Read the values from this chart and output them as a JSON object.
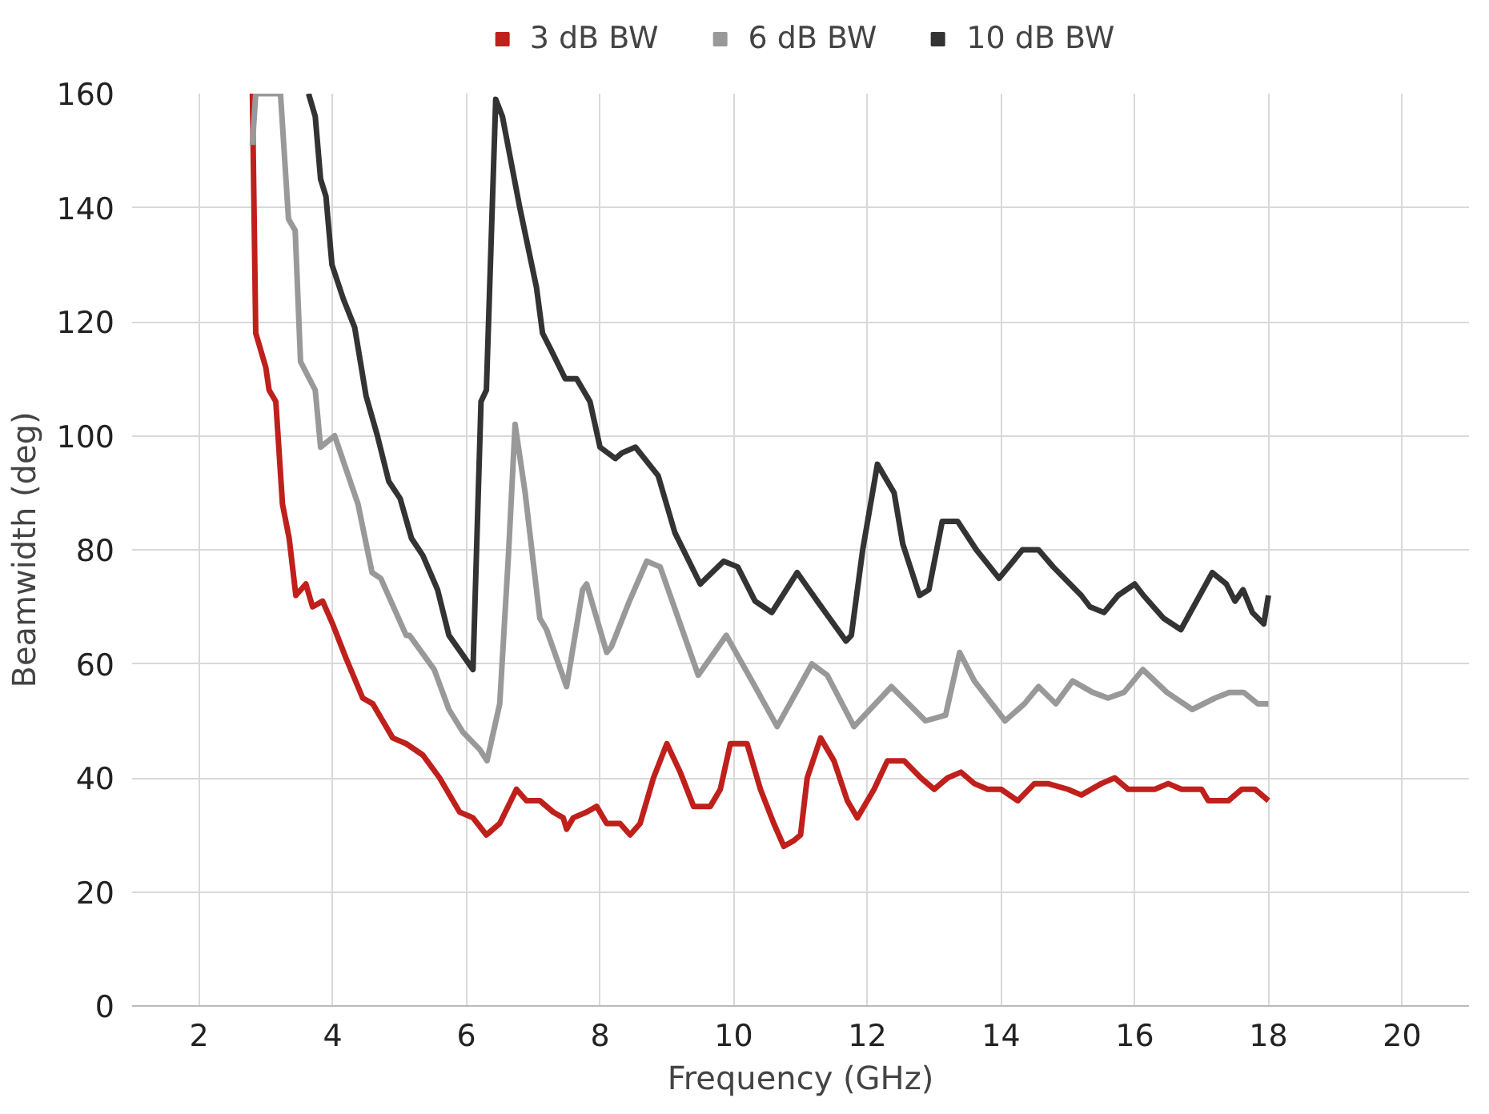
{
  "chart_data": {
    "type": "line",
    "xlabel": "Frequency (GHz)",
    "ylabel": "Beamwidth (deg)",
    "xlim": [
      1,
      21
    ],
    "ylim": [
      0,
      160
    ],
    "xticks": [
      2,
      4,
      6,
      8,
      10,
      12,
      14,
      16,
      18,
      20
    ],
    "yticks": [
      0,
      20,
      40,
      60,
      80,
      100,
      120,
      140,
      160
    ],
    "grid": true,
    "legend": "top",
    "marker": "none",
    "line_style": "solid",
    "series": [
      {
        "name": "3 dB BW",
        "color": "#c0201c",
        "x": [
          2.8,
          2.85,
          3.0,
          3.05,
          3.15,
          3.25,
          3.35,
          3.45,
          3.6,
          3.7,
          3.85,
          4.0,
          4.2,
          4.45,
          4.6,
          4.75,
          4.9,
          5.1,
          5.35,
          5.6,
          5.9,
          6.1,
          6.3,
          6.5,
          6.75,
          6.9,
          7.1,
          7.3,
          7.45,
          7.5,
          7.6,
          7.8,
          7.95,
          8.1,
          8.3,
          8.45,
          8.6,
          8.8,
          9.0,
          9.2,
          9.4,
          9.65,
          9.8,
          9.95,
          10.2,
          10.4,
          10.6,
          10.75,
          10.9,
          11.0,
          11.1,
          11.3,
          11.5,
          11.7,
          11.85,
          12.1,
          12.3,
          12.55,
          12.8,
          13.0,
          13.2,
          13.4,
          13.6,
          13.8,
          14.0,
          14.25,
          14.5,
          14.7,
          15.0,
          15.2,
          15.5,
          15.7,
          15.9,
          16.1,
          16.3,
          16.5,
          16.7,
          17.0,
          17.1,
          17.4,
          17.6,
          17.8,
          18.0
        ],
        "values": [
          160,
          118,
          112,
          108,
          106,
          88,
          82,
          72,
          74,
          70,
          71,
          67,
          61,
          54,
          53,
          50,
          47,
          46,
          44,
          40,
          34,
          33,
          30,
          32,
          38,
          36,
          36,
          34,
          33,
          31,
          33,
          34,
          35,
          32,
          32,
          30,
          32,
          40,
          46,
          41,
          35,
          35,
          38,
          46,
          46,
          38,
          32,
          28,
          29,
          30,
          40,
          47,
          43,
          36,
          33,
          38,
          43,
          43,
          40,
          38,
          40,
          41,
          39,
          38,
          38,
          36,
          39,
          39,
          38,
          37,
          39,
          40,
          38,
          38,
          38,
          39,
          38,
          38,
          36,
          36,
          38,
          38,
          36
        ]
      },
      {
        "name": "6 dB BW",
        "color": "#999999",
        "x": [
          2.8,
          2.85,
          3.15,
          3.22,
          3.34,
          3.44,
          3.52,
          3.74,
          3.82,
          4.03,
          4.38,
          4.59,
          4.72,
          5.1,
          5.15,
          5.52,
          5.74,
          5.95,
          6.2,
          6.31,
          6.5,
          6.63,
          6.73,
          6.88,
          7.1,
          7.2,
          7.5,
          7.74,
          7.8,
          8.1,
          8.17,
          8.44,
          8.7,
          8.9,
          9.17,
          9.47,
          9.89,
          10.32,
          10.65,
          11.17,
          11.4,
          11.8,
          12.36,
          12.7,
          12.87,
          13.17,
          13.38,
          13.6,
          14.06,
          14.35,
          14.56,
          14.82,
          15.07,
          15.37,
          15.6,
          15.84,
          16.12,
          16.48,
          16.86,
          17.2,
          17.42,
          17.63,
          17.84,
          18.0
        ],
        "values": [
          151,
          160,
          160,
          160,
          138,
          136,
          113,
          108,
          98,
          100,
          88,
          76,
          75,
          65,
          65,
          59,
          52,
          48,
          45,
          43,
          53,
          79,
          102,
          90,
          68,
          66,
          56,
          73,
          74,
          62,
          63,
          71,
          78,
          77,
          68,
          58,
          65,
          56,
          49,
          60,
          58,
          49,
          56,
          52,
          50,
          51,
          62,
          57,
          50,
          53,
          56,
          53,
          57,
          55,
          54,
          55,
          59,
          55,
          52,
          54,
          55,
          55,
          53,
          53
        ]
      },
      {
        "name": "10 dB BW",
        "color": "#333333",
        "x": [
          3.64,
          3.74,
          3.82,
          3.9,
          3.99,
          4.16,
          4.33,
          4.5,
          4.67,
          4.84,
          5.01,
          5.18,
          5.35,
          5.57,
          5.74,
          6.1,
          6.22,
          6.3,
          6.44,
          6.54,
          6.8,
          7.05,
          7.14,
          7.27,
          7.48,
          7.65,
          7.85,
          8.0,
          8.23,
          8.33,
          8.53,
          8.87,
          9.12,
          9.5,
          9.85,
          10.06,
          10.32,
          10.57,
          10.95,
          11.25,
          11.68,
          11.76,
          11.93,
          12.15,
          12.4,
          12.53,
          12.78,
          12.92,
          13.12,
          13.35,
          13.63,
          13.97,
          14.32,
          14.56,
          14.78,
          15.2,
          15.33,
          15.54,
          15.75,
          16.0,
          16.13,
          16.43,
          16.69,
          17.16,
          17.37,
          17.5,
          17.62,
          17.76,
          17.93,
          18.0
        ],
        "values": [
          160,
          156,
          145,
          142,
          130,
          124,
          119,
          107,
          100,
          92,
          89,
          82,
          79,
          73,
          65,
          59,
          106,
          108,
          159,
          156,
          140,
          126,
          118,
          115,
          110,
          110,
          106,
          98,
          96,
          97,
          98,
          93,
          83,
          74,
          78,
          77,
          71,
          69,
          76,
          71,
          64,
          65,
          80,
          95,
          90,
          81,
          72,
          73,
          85,
          85,
          80,
          75,
          80,
          80,
          77,
          72,
          70,
          69,
          72,
          74,
          72,
          68,
          66,
          76,
          74,
          71,
          73,
          69,
          67,
          72
        ]
      }
    ]
  }
}
